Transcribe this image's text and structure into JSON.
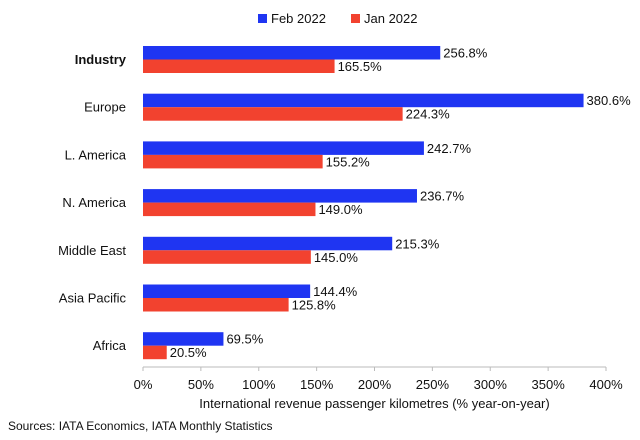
{
  "chart_data": {
    "type": "bar",
    "orientation": "horizontal",
    "categories": [
      "Industry",
      "Europe",
      "L. America",
      "N. America",
      "Middle East",
      "Asia Pacific",
      "Africa"
    ],
    "bold_categories": [
      "Industry"
    ],
    "series": [
      {
        "name": "Feb 2022",
        "color": "#1f35f2",
        "values": [
          256.8,
          380.6,
          242.7,
          236.7,
          215.3,
          144.4,
          69.5
        ],
        "labels": [
          "256.8%",
          "380.6%",
          "242.7%",
          "236.7%",
          "215.3%",
          "144.4%",
          "69.5%"
        ]
      },
      {
        "name": "Jan 2022",
        "color": "#f2422f",
        "values": [
          165.5,
          224.3,
          155.2,
          149.0,
          145.0,
          125.8,
          20.5
        ],
        "labels": [
          "165.5%",
          "224.3%",
          "155.2%",
          "149.0%",
          "145.0%",
          "125.8%",
          "20.5%"
        ]
      }
    ],
    "xlim": [
      0,
      400
    ],
    "xticks": [
      "0%",
      "50%",
      "100%",
      "150%",
      "200%",
      "250%",
      "300%",
      "350%",
      "400%"
    ],
    "xlabel": "International revenue passenger kilometres (% year-on-year)",
    "legend": "top",
    "grid": false
  },
  "footer": {
    "source": "Sources: IATA Economics, IATA Monthly Statistics"
  }
}
